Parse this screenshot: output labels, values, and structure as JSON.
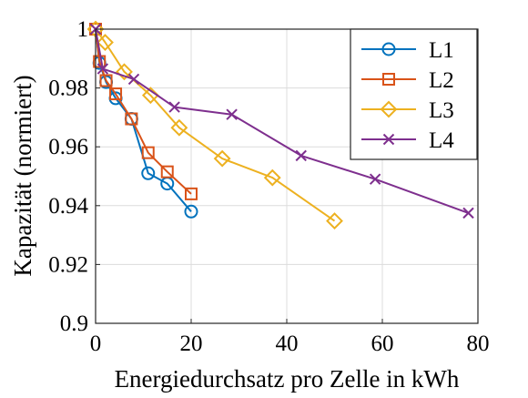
{
  "chart_data": {
    "type": "line",
    "title": "",
    "xlabel": "Energiedurchsatz pro Zelle in kWh",
    "ylabel": "Kapazität (normiert)",
    "xlim": [
      0,
      80
    ],
    "ylim": [
      0.9,
      1.0
    ],
    "xticks": [
      "0",
      "20",
      "40",
      "60",
      "80"
    ],
    "yticks": [
      "0.9",
      "0.92",
      "0.94",
      "0.96",
      "0.98",
      "1"
    ],
    "grid": true,
    "legend_position": "top-right",
    "series": [
      {
        "name": "L1",
        "color": "#0072BD",
        "marker": "circle",
        "x": [
          0,
          0.8,
          2.2,
          4.2,
          7.5,
          11,
          15,
          20
        ],
        "y": [
          1.0,
          0.9885,
          0.982,
          0.9765,
          0.9695,
          0.951,
          0.9475,
          0.938
        ]
      },
      {
        "name": "L2",
        "color": "#D95319",
        "marker": "square",
        "x": [
          0,
          0.8,
          2.2,
          4.2,
          7.5,
          11,
          15,
          20
        ],
        "y": [
          1.0,
          0.989,
          0.9825,
          0.978,
          0.9695,
          0.958,
          0.9515,
          0.944
        ]
      },
      {
        "name": "L3",
        "color": "#EDB120",
        "marker": "diamond",
        "x": [
          0,
          2,
          6,
          11.5,
          17.5,
          26.5,
          37,
          50
        ],
        "y": [
          1.0,
          0.9955,
          0.9855,
          0.9775,
          0.9665,
          0.956,
          0.9495,
          0.9348
        ]
      },
      {
        "name": "L4",
        "color": "#7E2F8E",
        "marker": "x",
        "x": [
          0,
          1.5,
          8,
          16.5,
          28.5,
          43,
          58.5,
          78
        ],
        "y": [
          1.0,
          0.9865,
          0.983,
          0.9735,
          0.971,
          0.957,
          0.949,
          0.9375
        ]
      }
    ]
  }
}
